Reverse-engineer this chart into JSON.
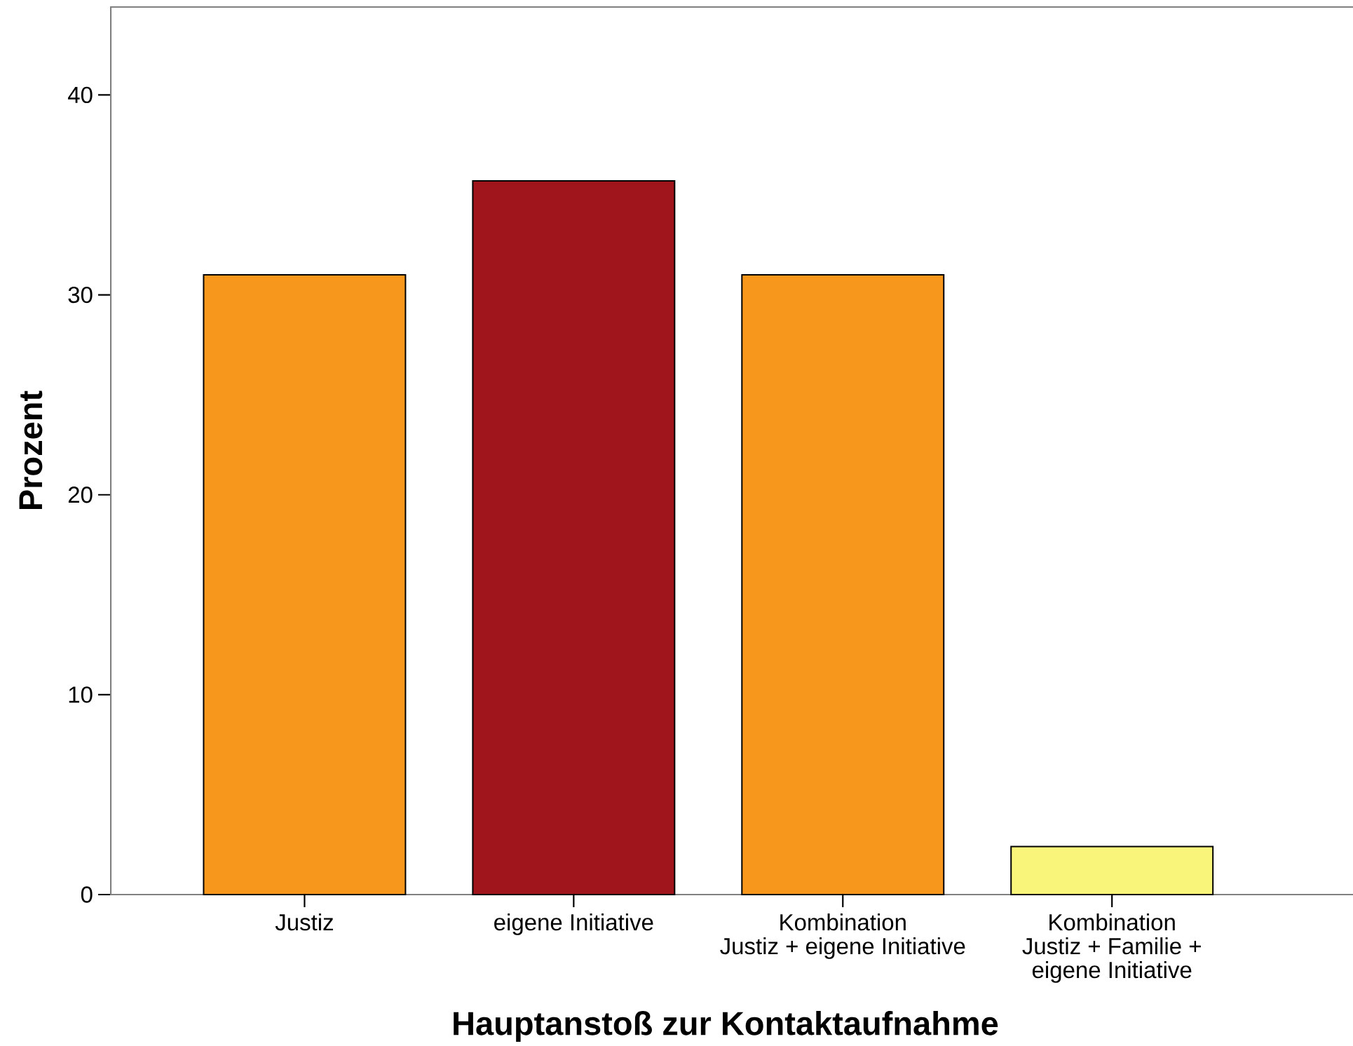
{
  "chart_data": {
    "type": "bar",
    "xlabel": "Hauptanstoß zur Kontaktaufnahme",
    "ylabel": "Prozent",
    "categories": [
      "Justiz",
      "eigene Initiative",
      "Kombination\nJustiz + eigene Initiative",
      "Kombination\nJustiz + Familie +\neigene Initiative"
    ],
    "values": [
      31.0,
      35.7,
      31.0,
      2.4
    ],
    "colors": [
      "#f7981d",
      "#a0151b",
      "#f7981d",
      "#f8f57a"
    ],
    "ylim": [
      0,
      44.4
    ],
    "yticks": [
      0,
      10,
      20,
      30,
      40
    ]
  }
}
